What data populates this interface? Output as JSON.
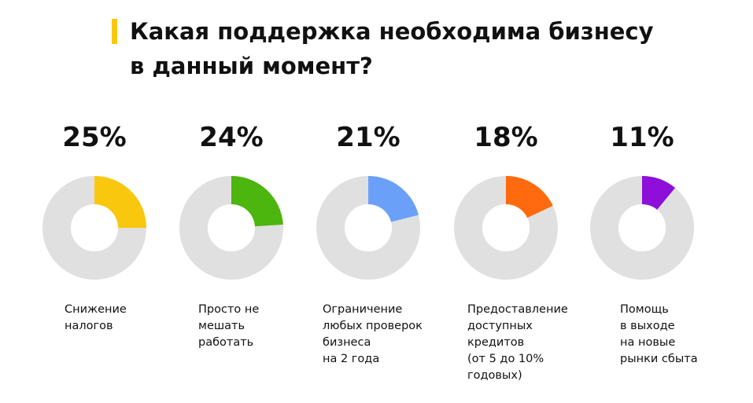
{
  "chart_data": {
    "type": "donut",
    "title": "Какая поддержка необходима бизнесу\nв данный момент?",
    "categories": [
      "Снижение\nналогов",
      "Просто не\nмешать\nработать",
      "Ограничение\nлюбых проверок\nбизнеса\nна 2 года",
      "Предоставление\nдоступных\nкредитов\n(от 5 до 10%\nгодовых)",
      "Помощь\nв выходе\nна новые\nрынки сбыта"
    ],
    "values": [
      25,
      24,
      21,
      18,
      11
    ],
    "value_labels": [
      "25%",
      "24%",
      "21%",
      "18%",
      "11%"
    ],
    "colors": [
      "#f9c80e",
      "#4cb50e",
      "#6aa0f8",
      "#ff6a0f",
      "#8e0fd9"
    ]
  }
}
